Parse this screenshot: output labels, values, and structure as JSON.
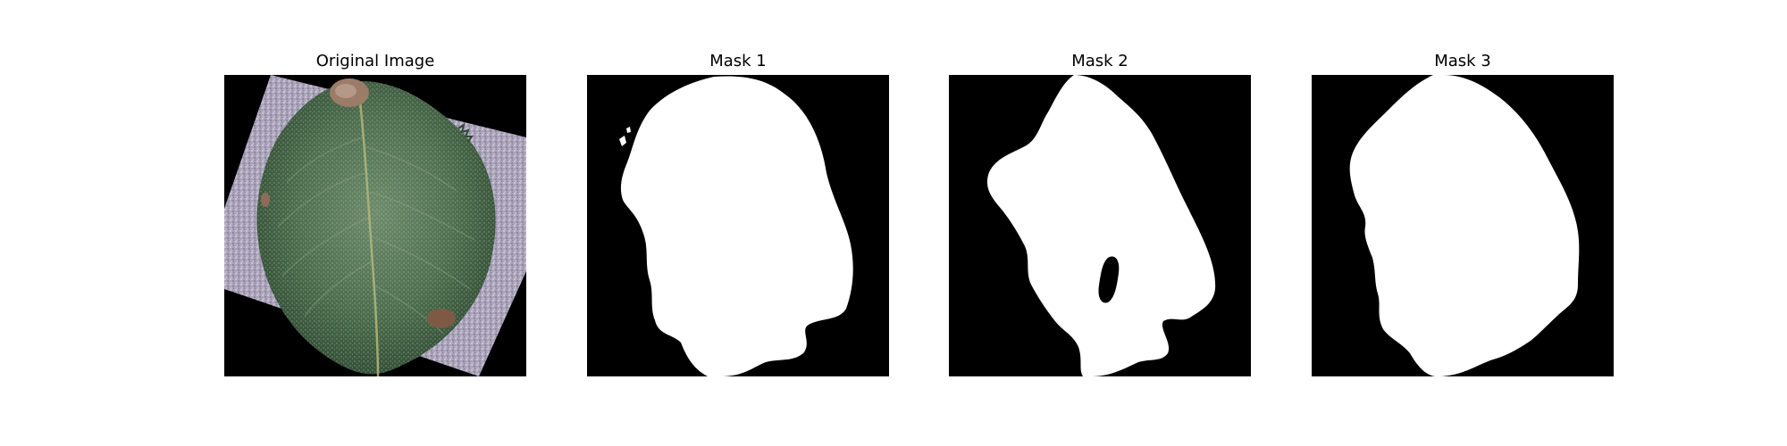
{
  "panels": [
    {
      "title": "Original Image",
      "kind": "photo",
      "subject": "leaf"
    },
    {
      "title": "Mask 1",
      "kind": "mask"
    },
    {
      "title": "Mask 2",
      "kind": "mask"
    },
    {
      "title": "Mask 3",
      "kind": "mask"
    }
  ],
  "colors": {
    "background": "#ffffff",
    "mask_bg": "#000000",
    "mask_fg": "#ffffff",
    "leaf_dark": "#3d5b3f",
    "leaf_light": "#6f8e6d",
    "board": "#a9a3b8",
    "lesion": "#9c7b66"
  }
}
